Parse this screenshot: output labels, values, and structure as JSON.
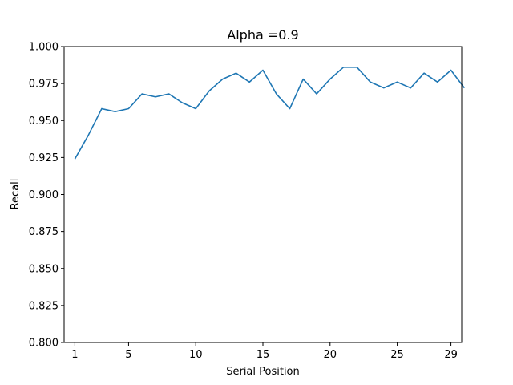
{
  "chart_data": {
    "type": "line",
    "title": "Alpha =0.9",
    "xlabel": "Serial Position",
    "ylabel": "Recall",
    "xlim": [
      0.2,
      29.8
    ],
    "ylim": [
      0.8,
      1.0
    ],
    "x_ticks": [
      1,
      5,
      10,
      15,
      20,
      25,
      29
    ],
    "x_tick_labels": [
      "1",
      "5",
      "10",
      "15",
      "20",
      "25",
      "29"
    ],
    "y_ticks": [
      0.8,
      0.825,
      0.85,
      0.875,
      0.9,
      0.925,
      0.95,
      0.975,
      1.0
    ],
    "y_tick_labels": [
      "0.800",
      "0.825",
      "0.850",
      "0.875",
      "0.900",
      "0.925",
      "0.950",
      "0.975",
      "1.000"
    ],
    "grid": false,
    "colors": {
      "series": "#1f77b4"
    },
    "series": [
      {
        "x": [
          1,
          2,
          3,
          4,
          5,
          6,
          7,
          8,
          9,
          10,
          11,
          12,
          13,
          14,
          15,
          16,
          17,
          18,
          19,
          20,
          21,
          22,
          23,
          24,
          25,
          26,
          27,
          28,
          29,
          30
        ],
        "values": [
          0.924,
          0.94,
          0.958,
          0.956,
          0.958,
          0.968,
          0.966,
          0.968,
          0.962,
          0.958,
          0.97,
          0.978,
          0.982,
          0.976,
          0.984,
          0.968,
          0.958,
          0.978,
          0.968,
          0.978,
          0.986,
          0.986,
          0.976,
          0.972,
          0.976,
          0.972,
          0.982,
          0.976,
          0.984,
          0.972
        ]
      }
    ]
  }
}
